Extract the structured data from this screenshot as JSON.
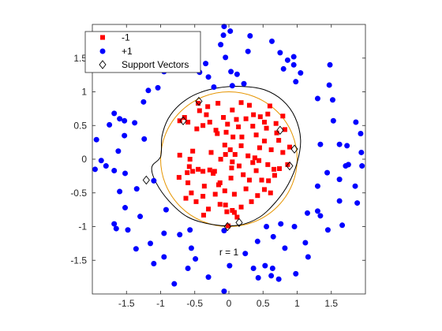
{
  "chart_data": {
    "type": "scatter",
    "title": "",
    "xlabel": "",
    "ylabel": "",
    "xlim": [
      -2.0,
      2.0
    ],
    "ylim": [
      -2.0,
      2.0
    ],
    "x_ticks": [
      -1.5,
      -1,
      -0.5,
      0,
      0.5,
      1,
      1.5
    ],
    "y_ticks": [
      -1.5,
      -1,
      -0.5,
      0,
      0.5,
      1,
      1.5
    ],
    "x_tick_labels": [
      "-1.5",
      "-1",
      "-0.5",
      "0",
      "0.5",
      "1",
      "1.5"
    ],
    "y_tick_labels": [
      "-1.5",
      "-1",
      "-0.5",
      "0",
      "0.5",
      "1",
      "1.5"
    ],
    "grid": false,
    "legend_position": "top-left",
    "annotation": {
      "text": "r = 1",
      "x": 0,
      "y": -1.38
    },
    "circle_radius": 1,
    "colors": {
      "neg": "#ff0000",
      "pos": "#0000ff",
      "circle": "#e69500",
      "boundary": "#000000",
      "axes": "#262626"
    },
    "series": [
      {
        "name": "-1",
        "marker": "square",
        "color": "#ff0000",
        "points": [
          [
            -0.72,
            0.06
          ],
          [
            -0.53,
            0.12
          ],
          [
            -0.57,
            0.0
          ],
          [
            -0.45,
            -0.15
          ],
          [
            -0.6,
            -0.35
          ],
          [
            -0.73,
            -0.27
          ],
          [
            -0.55,
            -0.5
          ],
          [
            -0.63,
            -0.58
          ],
          [
            -0.48,
            -0.63
          ],
          [
            -0.38,
            -0.55
          ],
          [
            -0.3,
            -0.74
          ],
          [
            -0.37,
            -0.83
          ],
          [
            -0.13,
            -0.35
          ],
          [
            -0.06,
            -0.47
          ],
          [
            -0.05,
            -0.68
          ],
          [
            -0.03,
            -0.78
          ],
          [
            -0.13,
            -0.67
          ],
          [
            0.05,
            -0.76
          ],
          [
            0.08,
            -0.52
          ],
          [
            0.03,
            -0.28
          ],
          [
            -0.21,
            -0.18
          ],
          [
            -0.28,
            -0.16
          ],
          [
            -0.38,
            -0.18
          ],
          [
            -0.53,
            -0.18
          ],
          [
            -0.61,
            -0.2
          ],
          [
            -0.23,
            -0.21
          ],
          [
            -0.15,
            -0.38
          ],
          [
            -0.26,
            0.1
          ],
          [
            -0.05,
            0.07
          ],
          [
            -0.06,
            0.21
          ],
          [
            -0.17,
            0.38
          ],
          [
            -0.19,
            0.43
          ],
          [
            -0.28,
            0.55
          ],
          [
            -0.38,
            0.5
          ],
          [
            -0.47,
            0.45
          ],
          [
            -0.6,
            0.55
          ],
          [
            -0.65,
            0.62
          ],
          [
            -0.43,
            0.72
          ],
          [
            -0.33,
            0.66
          ],
          [
            -0.31,
            0.78
          ],
          [
            -0.45,
            0.83
          ],
          [
            -0.16,
            0.83
          ],
          [
            -0.08,
            0.62
          ],
          [
            -0.02,
            0.52
          ],
          [
            -0.04,
            0.4
          ],
          [
            0.06,
            0.33
          ],
          [
            0.02,
            0.14
          ],
          [
            0.09,
            0.07
          ],
          [
            0.18,
            0.2
          ],
          [
            0.28,
            0.05
          ],
          [
            0.38,
            0.02
          ],
          [
            0.45,
            0.17
          ],
          [
            0.52,
            0.27
          ],
          [
            0.4,
            0.36
          ],
          [
            0.35,
            0.49
          ],
          [
            0.46,
            0.63
          ],
          [
            0.57,
            0.67
          ],
          [
            0.6,
            0.79
          ],
          [
            0.55,
            0.46
          ],
          [
            0.7,
            0.39
          ],
          [
            0.73,
            0.28
          ],
          [
            0.79,
            0.1
          ],
          [
            0.89,
            0.18
          ],
          [
            0.86,
            -0.08
          ],
          [
            0.74,
            -0.14
          ],
          [
            0.67,
            -0.24
          ],
          [
            0.58,
            -0.32
          ],
          [
            0.52,
            -0.45
          ],
          [
            0.42,
            -0.54
          ],
          [
            0.33,
            -0.63
          ],
          [
            0.18,
            -0.71
          ],
          [
            0.08,
            -0.79
          ],
          [
            0.25,
            -0.44
          ],
          [
            0.4,
            -0.17
          ],
          [
            0.15,
            -0.1
          ],
          [
            0.21,
            -0.23
          ],
          [
            0.3,
            -0.31
          ],
          [
            0.44,
            -0.02
          ],
          [
            0.57,
            -0.08
          ],
          [
            0.66,
            -0.15
          ],
          [
            0.19,
            0.33
          ],
          [
            0.25,
            0.6
          ],
          [
            0.05,
            0.73
          ],
          [
            0.18,
            0.84
          ],
          [
            0.3,
            0.8
          ],
          [
            0.36,
            0.66
          ],
          [
            0.11,
            0.59
          ],
          [
            -0.12,
            0.0
          ],
          [
            -0.36,
            -0.4
          ],
          [
            -0.2,
            -0.52
          ],
          [
            -0.58,
            -0.11
          ],
          [
            0.62,
            0.14
          ],
          [
            0.05,
            -0.04
          ],
          [
            0.14,
            0.48
          ],
          [
            0.52,
            0.55
          ],
          [
            0.69,
            0.53
          ],
          [
            0.79,
            0.64
          ],
          [
            0.82,
            0.44
          ],
          [
            0.35,
            -0.05
          ],
          [
            0.48,
            -0.31
          ],
          [
            0.61,
            -0.5
          ],
          [
            0.04,
            -0.13
          ],
          [
            -0.01,
            -0.99
          ],
          [
            0.12,
            -0.86
          ],
          [
            -0.72,
            0.57
          ]
        ]
      },
      {
        "name": "+1",
        "marker": "circle",
        "color": "#0000ff",
        "points": [
          [
            -0.07,
            1.97
          ],
          [
            0.02,
            1.9
          ],
          [
            0.28,
            1.6
          ],
          [
            0.31,
            1.83
          ],
          [
            0.63,
            1.75
          ],
          [
            0.86,
            1.47
          ],
          [
            0.95,
            1.4
          ],
          [
            0.98,
            1.15
          ],
          [
            1.05,
            1.28
          ],
          [
            1.48,
            1.4
          ],
          [
            1.47,
            1.1
          ],
          [
            1.52,
            0.88
          ],
          [
            1.86,
            0.55
          ],
          [
            1.93,
            0.38
          ],
          [
            1.53,
            0.57
          ],
          [
            1.62,
            0.22
          ],
          [
            1.34,
            0.22
          ],
          [
            1.73,
            0.2
          ],
          [
            1.75,
            -0.08
          ],
          [
            1.71,
            -0.1
          ],
          [
            1.85,
            -0.4
          ],
          [
            1.95,
            -0.1
          ],
          [
            1.62,
            -0.3
          ],
          [
            1.3,
            -0.4
          ],
          [
            1.3,
            -0.77
          ],
          [
            1.15,
            -0.8
          ],
          [
            1.45,
            -1.05
          ],
          [
            1.66,
            -0.98
          ],
          [
            1.88,
            -0.65
          ],
          [
            0.96,
            -1.0
          ],
          [
            0.76,
            -0.96
          ],
          [
            0.55,
            -1.0
          ],
          [
            0.42,
            -1.22
          ],
          [
            0.53,
            -1.58
          ],
          [
            0.64,
            -1.62
          ],
          [
            0.73,
            -1.78
          ],
          [
            0.62,
            -1.73
          ],
          [
            0.82,
            -1.32
          ],
          [
            1.12,
            -1.24
          ],
          [
            1.16,
            -1.45
          ],
          [
            0.98,
            -1.7
          ],
          [
            0.24,
            -1.4
          ],
          [
            0.36,
            -1.62
          ],
          [
            0.01,
            -1.58
          ],
          [
            -0.3,
            -1.75
          ],
          [
            -0.49,
            -1.48
          ],
          [
            -0.55,
            -1.32
          ],
          [
            -0.57,
            -1.05
          ],
          [
            -0.72,
            -1.12
          ],
          [
            -0.92,
            -0.75
          ],
          [
            -0.95,
            -1.1
          ],
          [
            -1.15,
            -1.25
          ],
          [
            -0.95,
            -1.45
          ],
          [
            -1.36,
            -1.33
          ],
          [
            -1.48,
            -1.05
          ],
          [
            -1.65,
            -1.03
          ],
          [
            -1.68,
            -0.96
          ],
          [
            -1.52,
            -0.72
          ],
          [
            -1.6,
            -0.48
          ],
          [
            -1.35,
            -0.44
          ],
          [
            -1.1,
            -0.32
          ],
          [
            -1.52,
            -0.21
          ],
          [
            -1.68,
            -0.17
          ],
          [
            -1.96,
            -0.15
          ],
          [
            -1.8,
            -0.1
          ],
          [
            -1.87,
            -0.02
          ],
          [
            -1.94,
            0.29
          ],
          [
            -1.62,
            0.12
          ],
          [
            -1.53,
            0.35
          ],
          [
            -1.75,
            0.51
          ],
          [
            -1.68,
            0.68
          ],
          [
            -1.6,
            0.6
          ],
          [
            -1.53,
            0.57
          ],
          [
            -1.38,
            0.54
          ],
          [
            -1.25,
            0.85
          ],
          [
            -1.18,
            1.02
          ],
          [
            -1.04,
            1.06
          ],
          [
            -0.95,
            1.3
          ],
          [
            -0.83,
            1.42
          ],
          [
            -0.62,
            1.51
          ],
          [
            -0.3,
            1.22
          ],
          [
            -0.34,
            1.42
          ],
          [
            -0.12,
            1.7
          ],
          [
            -0.08,
            1.84
          ],
          [
            0.03,
            1.3
          ],
          [
            0.12,
            1.26
          ],
          [
            0.05,
            1.09
          ],
          [
            0.22,
            1.12
          ],
          [
            0.75,
            1.58
          ],
          [
            0.95,
            1.52
          ],
          [
            1.62,
            -0.62
          ],
          [
            1.34,
            -0.84
          ],
          [
            -0.07,
            -1.06
          ],
          [
            -0.8,
            -1.85
          ],
          [
            -0.07,
            -1.96
          ],
          [
            0.65,
            -1.15
          ],
          [
            0.43,
            -1.76
          ],
          [
            -0.6,
            -1.62
          ],
          [
            -1.1,
            -1.55
          ],
          [
            -1.3,
            -0.85
          ],
          [
            -0.43,
            1.29
          ],
          [
            -0.22,
            1.07
          ],
          [
            -0.05,
            1.51
          ],
          [
            0.8,
            1.34
          ],
          [
            1.3,
            0.9
          ],
          [
            1.44,
            -0.2
          ],
          [
            1.94,
            0.1
          ],
          [
            -1.24,
            0.3
          ]
        ]
      }
    ],
    "support_vectors": [
      [
        -0.67,
        0.57
      ],
      [
        -0.44,
        0.86
      ],
      [
        -1.21,
        -0.31
      ],
      [
        0.15,
        -0.94
      ],
      [
        0.96,
        0.15
      ],
      [
        0.89,
        -0.1
      ],
      [
        0.75,
        0.43
      ],
      [
        -0.02,
        -1.0
      ]
    ],
    "decision_boundary": [
      [
        -1.0,
        0.04
      ],
      [
        -0.98,
        0.34
      ],
      [
        -0.89,
        0.6
      ],
      [
        -0.72,
        0.81
      ],
      [
        -0.47,
        0.97
      ],
      [
        -0.15,
        1.06
      ],
      [
        0.2,
        1.08
      ],
      [
        0.52,
        1.03
      ],
      [
        0.79,
        0.87
      ],
      [
        0.97,
        0.62
      ],
      [
        1.05,
        0.29
      ],
      [
        1.0,
        -0.05
      ],
      [
        0.87,
        -0.37
      ],
      [
        0.69,
        -0.63
      ],
      [
        0.45,
        -0.86
      ],
      [
        0.14,
        -0.98
      ],
      [
        -0.24,
        -0.97
      ],
      [
        -0.6,
        -0.86
      ],
      [
        -0.86,
        -0.64
      ],
      [
        -1.06,
        -0.36
      ],
      [
        -1.13,
        -0.12
      ],
      [
        -1.0,
        0.04
      ]
    ],
    "legend": [
      {
        "label": "-1",
        "marker": "square",
        "color": "#ff0000"
      },
      {
        "label": "+1",
        "marker": "circle",
        "color": "#0000ff"
      },
      {
        "label": "Support Vectors",
        "marker": "diamond",
        "color": "#000000"
      }
    ]
  }
}
